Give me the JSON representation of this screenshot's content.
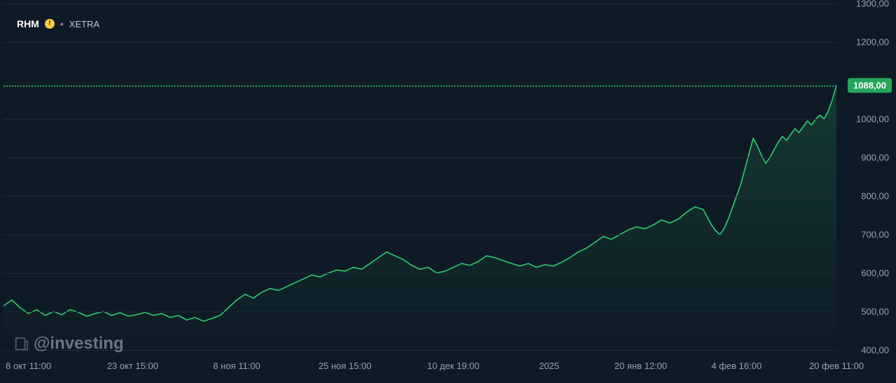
{
  "header": {
    "ticker": "RHM",
    "exchange": "XETRA",
    "separator": "•"
  },
  "watermark": "@investing",
  "chart": {
    "type": "area",
    "background_color": "#0e1a25",
    "grid_color": "#1e2a35",
    "line_color": "#2ecc71",
    "line_width": 1.6,
    "fill_color_top": "rgba(46,204,113,0.13)",
    "fill_color_bottom": "rgba(46,204,113,0.00)",
    "current_price": "1088,00",
    "current_price_value": 1088,
    "price_badge_bg": "#26a65b",
    "price_badge_text": "#ffffff",
    "y_axis": {
      "min": 400,
      "max": 1300,
      "ticks": [
        400,
        500,
        600,
        700,
        800,
        900,
        1000,
        1088,
        1200,
        1300
      ],
      "tick_labels": [
        "400,00",
        "500,00",
        "600,00",
        "700,00",
        "800,00",
        "900,00",
        "1000,00",
        "1088,00",
        "1200,00",
        "1300,00"
      ],
      "label_color": "#9aa3ab",
      "label_fontsize": 13
    },
    "x_axis": {
      "tick_positions": [
        0.03,
        0.155,
        0.28,
        0.41,
        0.54,
        0.655,
        0.765,
        0.88,
        1.0
      ],
      "tick_labels": [
        "8 окт 11:00",
        "23 окт 15:00",
        "8 ноя 11:00",
        "25 ноя 15:00",
        "10 дек 19:00",
        "2025",
        "20 янв 12:00",
        "4 фев 16:00",
        "20 фев 11:00"
      ],
      "label_color": "#9aa3ab",
      "label_fontsize": 13
    },
    "series": [
      {
        "x": 0.0,
        "y": 515
      },
      {
        "x": 0.01,
        "y": 530
      },
      {
        "x": 0.02,
        "y": 510
      },
      {
        "x": 0.03,
        "y": 495
      },
      {
        "x": 0.04,
        "y": 505
      },
      {
        "x": 0.05,
        "y": 490
      },
      {
        "x": 0.06,
        "y": 500
      },
      {
        "x": 0.07,
        "y": 492
      },
      {
        "x": 0.08,
        "y": 505
      },
      {
        "x": 0.09,
        "y": 498
      },
      {
        "x": 0.1,
        "y": 488
      },
      {
        "x": 0.11,
        "y": 495
      },
      {
        "x": 0.12,
        "y": 500
      },
      {
        "x": 0.13,
        "y": 490
      },
      {
        "x": 0.14,
        "y": 497
      },
      {
        "x": 0.15,
        "y": 488
      },
      {
        "x": 0.16,
        "y": 492
      },
      {
        "x": 0.17,
        "y": 498
      },
      {
        "x": 0.18,
        "y": 490
      },
      {
        "x": 0.19,
        "y": 495
      },
      {
        "x": 0.2,
        "y": 485
      },
      {
        "x": 0.21,
        "y": 490
      },
      {
        "x": 0.22,
        "y": 478
      },
      {
        "x": 0.23,
        "y": 485
      },
      {
        "x": 0.24,
        "y": 475
      },
      {
        "x": 0.25,
        "y": 482
      },
      {
        "x": 0.26,
        "y": 490
      },
      {
        "x": 0.27,
        "y": 510
      },
      {
        "x": 0.28,
        "y": 530
      },
      {
        "x": 0.29,
        "y": 545
      },
      {
        "x": 0.3,
        "y": 535
      },
      {
        "x": 0.31,
        "y": 550
      },
      {
        "x": 0.32,
        "y": 560
      },
      {
        "x": 0.33,
        "y": 555
      },
      {
        "x": 0.34,
        "y": 565
      },
      {
        "x": 0.35,
        "y": 575
      },
      {
        "x": 0.36,
        "y": 585
      },
      {
        "x": 0.37,
        "y": 595
      },
      {
        "x": 0.38,
        "y": 590
      },
      {
        "x": 0.39,
        "y": 600
      },
      {
        "x": 0.4,
        "y": 608
      },
      {
        "x": 0.41,
        "y": 605
      },
      {
        "x": 0.42,
        "y": 615
      },
      {
        "x": 0.43,
        "y": 610
      },
      {
        "x": 0.44,
        "y": 625
      },
      {
        "x": 0.45,
        "y": 640
      },
      {
        "x": 0.46,
        "y": 655
      },
      {
        "x": 0.47,
        "y": 645
      },
      {
        "x": 0.48,
        "y": 635
      },
      {
        "x": 0.49,
        "y": 620
      },
      {
        "x": 0.5,
        "y": 610
      },
      {
        "x": 0.51,
        "y": 615
      },
      {
        "x": 0.52,
        "y": 600
      },
      {
        "x": 0.53,
        "y": 605
      },
      {
        "x": 0.54,
        "y": 615
      },
      {
        "x": 0.55,
        "y": 625
      },
      {
        "x": 0.56,
        "y": 620
      },
      {
        "x": 0.57,
        "y": 630
      },
      {
        "x": 0.58,
        "y": 645
      },
      {
        "x": 0.59,
        "y": 640
      },
      {
        "x": 0.6,
        "y": 632
      },
      {
        "x": 0.61,
        "y": 625
      },
      {
        "x": 0.62,
        "y": 618
      },
      {
        "x": 0.63,
        "y": 625
      },
      {
        "x": 0.64,
        "y": 615
      },
      {
        "x": 0.65,
        "y": 622
      },
      {
        "x": 0.66,
        "y": 618
      },
      {
        "x": 0.67,
        "y": 628
      },
      {
        "x": 0.68,
        "y": 640
      },
      {
        "x": 0.69,
        "y": 655
      },
      {
        "x": 0.7,
        "y": 665
      },
      {
        "x": 0.71,
        "y": 680
      },
      {
        "x": 0.72,
        "y": 695
      },
      {
        "x": 0.73,
        "y": 688
      },
      {
        "x": 0.74,
        "y": 700
      },
      {
        "x": 0.75,
        "y": 712
      },
      {
        "x": 0.76,
        "y": 720
      },
      {
        "x": 0.77,
        "y": 715
      },
      {
        "x": 0.78,
        "y": 725
      },
      {
        "x": 0.79,
        "y": 738
      },
      {
        "x": 0.8,
        "y": 730
      },
      {
        "x": 0.81,
        "y": 740
      },
      {
        "x": 0.82,
        "y": 758
      },
      {
        "x": 0.83,
        "y": 772
      },
      {
        "x": 0.84,
        "y": 765
      },
      {
        "x": 0.845,
        "y": 745
      },
      {
        "x": 0.85,
        "y": 725
      },
      {
        "x": 0.855,
        "y": 710
      },
      {
        "x": 0.86,
        "y": 700
      },
      {
        "x": 0.865,
        "y": 715
      },
      {
        "x": 0.87,
        "y": 740
      },
      {
        "x": 0.875,
        "y": 770
      },
      {
        "x": 0.88,
        "y": 800
      },
      {
        "x": 0.885,
        "y": 830
      },
      {
        "x": 0.89,
        "y": 870
      },
      {
        "x": 0.895,
        "y": 910
      },
      {
        "x": 0.9,
        "y": 950
      },
      {
        "x": 0.905,
        "y": 930
      },
      {
        "x": 0.91,
        "y": 905
      },
      {
        "x": 0.915,
        "y": 885
      },
      {
        "x": 0.92,
        "y": 900
      },
      {
        "x": 0.925,
        "y": 920
      },
      {
        "x": 0.93,
        "y": 940
      },
      {
        "x": 0.935,
        "y": 955
      },
      {
        "x": 0.94,
        "y": 945
      },
      {
        "x": 0.945,
        "y": 960
      },
      {
        "x": 0.95,
        "y": 975
      },
      {
        "x": 0.955,
        "y": 965
      },
      {
        "x": 0.96,
        "y": 980
      },
      {
        "x": 0.965,
        "y": 995
      },
      {
        "x": 0.97,
        "y": 985
      },
      {
        "x": 0.975,
        "y": 1000
      },
      {
        "x": 0.98,
        "y": 1010
      },
      {
        "x": 0.985,
        "y": 1000
      },
      {
        "x": 0.99,
        "y": 1020
      },
      {
        "x": 0.995,
        "y": 1050
      },
      {
        "x": 1.0,
        "y": 1088
      }
    ]
  }
}
